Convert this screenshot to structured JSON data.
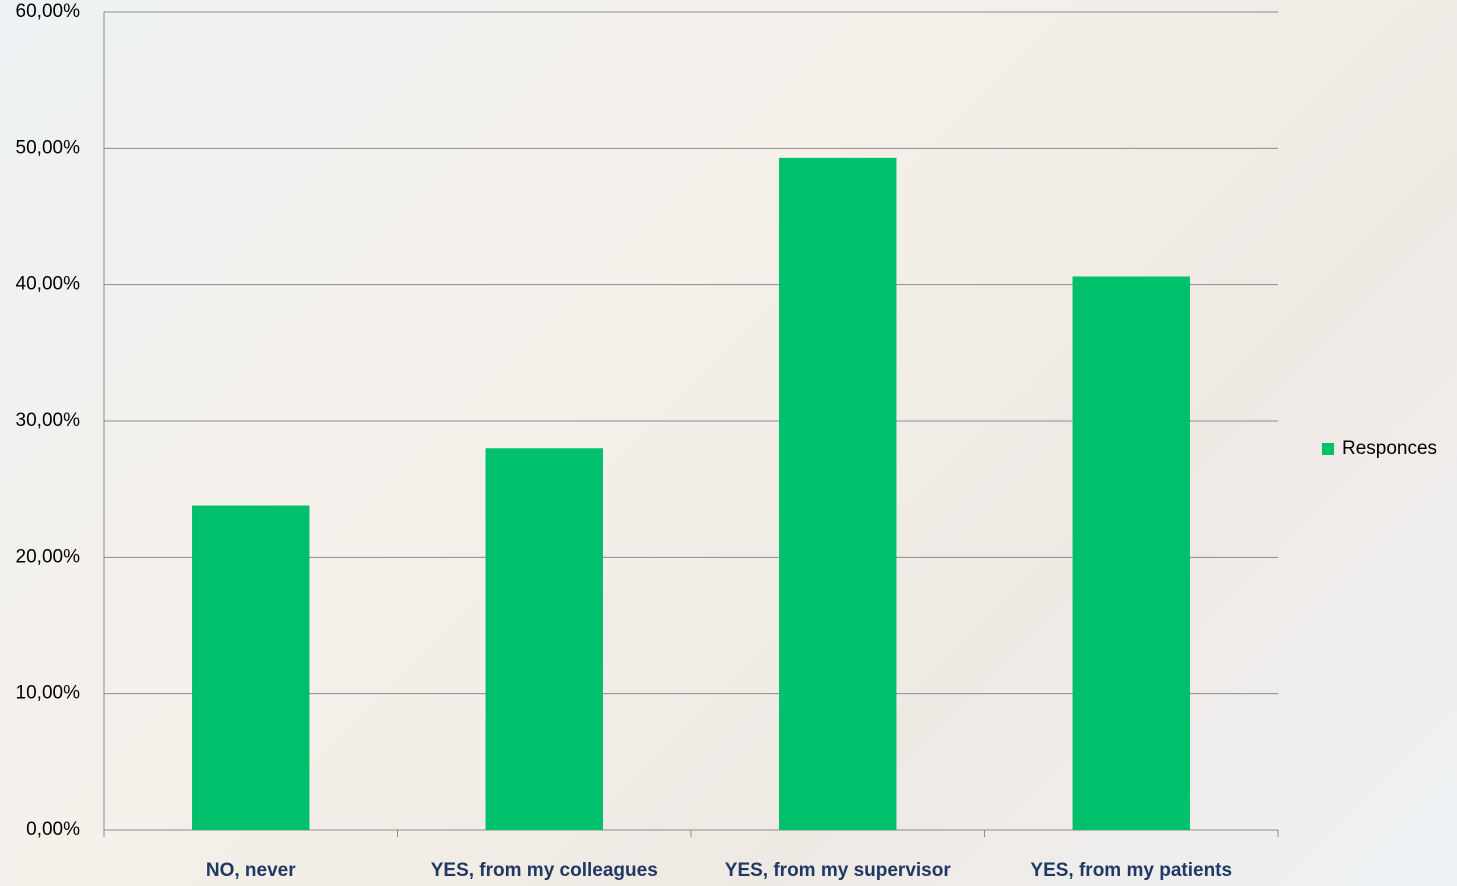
{
  "chart_data": {
    "type": "bar",
    "categories": [
      "NO, never",
      "YES, from my colleagues",
      "YES, from my supervisor",
      "YES, from my patients"
    ],
    "series": [
      {
        "name": "Responces",
        "color": "#00c06b",
        "values": [
          23.8,
          28.0,
          49.3,
          40.6
        ]
      }
    ],
    "ylim": [
      0,
      60
    ],
    "yticks": [
      {
        "value": 0,
        "label": "0,00%"
      },
      {
        "value": 10,
        "label": "10,00%"
      },
      {
        "value": 20,
        "label": "20,00%"
      },
      {
        "value": 30,
        "label": "30,00%"
      },
      {
        "value": 40,
        "label": "40,00%"
      },
      {
        "value": 50,
        "label": "50,00%"
      },
      {
        "value": 60,
        "label": "60,00%"
      }
    ],
    "grid": true,
    "legend": "right"
  }
}
